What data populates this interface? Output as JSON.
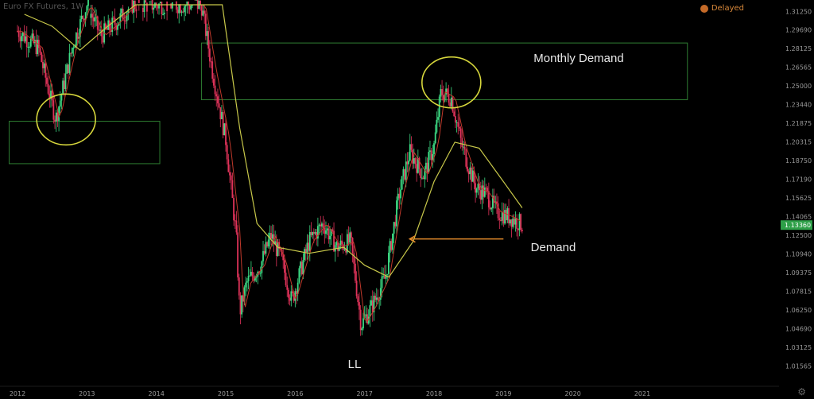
{
  "header": {
    "symbol": "Euro FX Futures, 1W",
    "status": "Delayed"
  },
  "colors": {
    "background": "#000000",
    "up_candle": "#3ddc84",
    "down_candle": "#e0335a",
    "ma_fast": "#c0392b",
    "ma_slow": "#c8c84a",
    "zone": "#2e7d32",
    "circle": "#d7d73c",
    "arrow": "#e38a2a",
    "price_badge": "#2e9f48",
    "axis_text": "#9a9a9a"
  },
  "annotations": {
    "monthly_demand": "Monthly Demand",
    "demand": "Demand",
    "ll": "LL"
  },
  "chart_data": {
    "type": "candlestick",
    "title": "",
    "y_axis_labels": [
      "1.31250",
      "1.29690",
      "1.28125",
      "1.26565",
      "1.25000",
      "1.23440",
      "1.21875",
      "1.20315",
      "1.18750",
      "1.17190",
      "1.15625",
      "1.14065",
      "1.12500",
      "1.10940",
      "1.09375",
      "1.07815",
      "1.06250",
      "1.04690",
      "1.03125",
      "1.01565"
    ],
    "last_price": "1.13360",
    "x_axis_labels": [
      "2012",
      "2013",
      "2014",
      "2015",
      "2016",
      "2017",
      "2018",
      "2019",
      "2020",
      "2021"
    ],
    "ylim": [
      1.008,
      1.318
    ],
    "price_path": [
      {
        "date": "2012.0",
        "price": 1.296
      },
      {
        "date": "2012.3",
        "price": 1.282
      },
      {
        "date": "2012.55",
        "price": 1.222
      },
      {
        "date": "2012.8",
        "price": 1.285
      },
      {
        "date": "2013.0",
        "price": 1.318
      },
      {
        "date": "2013.2",
        "price": 1.292
      },
      {
        "date": "2013.45",
        "price": 1.305
      },
      {
        "date": "2013.65",
        "price": 1.318
      },
      {
        "date": "2014.65",
        "price": 1.318
      },
      {
        "date": "2014.8",
        "price": 1.265
      },
      {
        "date": "2015.0",
        "price": 1.205
      },
      {
        "date": "2015.15",
        "price": 1.125
      },
      {
        "date": "2015.2",
        "price": 1.06
      },
      {
        "date": "2015.3",
        "price": 1.085
      },
      {
        "date": "2015.5",
        "price": 1.1
      },
      {
        "date": "2015.65",
        "price": 1.125
      },
      {
        "date": "2015.8",
        "price": 1.105
      },
      {
        "date": "2015.95",
        "price": 1.07
      },
      {
        "date": "2016.2",
        "price": 1.12
      },
      {
        "date": "2016.4",
        "price": 1.135
      },
      {
        "date": "2016.6",
        "price": 1.115
      },
      {
        "date": "2016.8",
        "price": 1.12
      },
      {
        "date": "2016.95",
        "price": 1.05
      },
      {
        "date": "2017.1",
        "price": 1.065
      },
      {
        "date": "2017.3",
        "price": 1.09
      },
      {
        "date": "2017.5",
        "price": 1.16
      },
      {
        "date": "2017.65",
        "price": 1.195
      },
      {
        "date": "2017.85",
        "price": 1.175
      },
      {
        "date": "2018.0",
        "price": 1.2
      },
      {
        "date": "2018.1",
        "price": 1.245
      },
      {
        "date": "2018.25",
        "price": 1.24
      },
      {
        "date": "2018.4",
        "price": 1.2
      },
      {
        "date": "2018.6",
        "price": 1.165
      },
      {
        "date": "2018.75",
        "price": 1.16
      },
      {
        "date": "2018.9",
        "price": 1.145
      },
      {
        "date": "2019.1",
        "price": 1.14
      },
      {
        "date": "2019.27",
        "price": 1.134
      }
    ],
    "moving_averages": [
      {
        "name": "",
        "points": [
          {
            "date": "2012.1",
            "price": 1.31
          },
          {
            "date": "2012.5",
            "price": 1.3
          },
          {
            "date": "2012.9",
            "price": 1.28
          },
          {
            "date": "2013.3",
            "price": 1.3
          },
          {
            "date": "2013.7",
            "price": 1.318
          },
          {
            "date": "2014.95",
            "price": 1.318
          },
          {
            "date": "2015.2",
            "price": 1.215
          },
          {
            "date": "2015.45",
            "price": 1.135
          },
          {
            "date": "2015.75",
            "price": 1.115
          },
          {
            "date": "2016.2",
            "price": 1.11
          },
          {
            "date": "2016.7",
            "price": 1.115
          },
          {
            "date": "2017.0",
            "price": 1.1
          },
          {
            "date": "2017.35",
            "price": 1.09
          },
          {
            "date": "2017.7",
            "price": 1.12
          },
          {
            "date": "2018.0",
            "price": 1.17
          },
          {
            "date": "2018.3",
            "price": 1.203
          },
          {
            "date": "2018.65",
            "price": 1.198
          },
          {
            "date": "2019.0",
            "price": 1.17
          },
          {
            "date": "2019.27",
            "price": 1.148
          }
        ]
      }
    ],
    "zones": [
      {
        "label": "Monthly Demand",
        "x0": "2014.65",
        "x1": "2021.65",
        "y_top": 1.286,
        "y_bottom": 1.2385
      },
      {
        "label": "",
        "x0": "2011.88",
        "x1": "2014.05",
        "y_top": 1.2205,
        "y_bottom": 1.185
      }
    ],
    "circles": [
      {
        "date": "2012.7",
        "price": 1.222
      },
      {
        "date": "2018.25",
        "price": 1.253
      }
    ],
    "arrow": {
      "label": "Demand",
      "from_date": "2019.0",
      "to_date": "2017.65",
      "price": 1.122
    }
  }
}
